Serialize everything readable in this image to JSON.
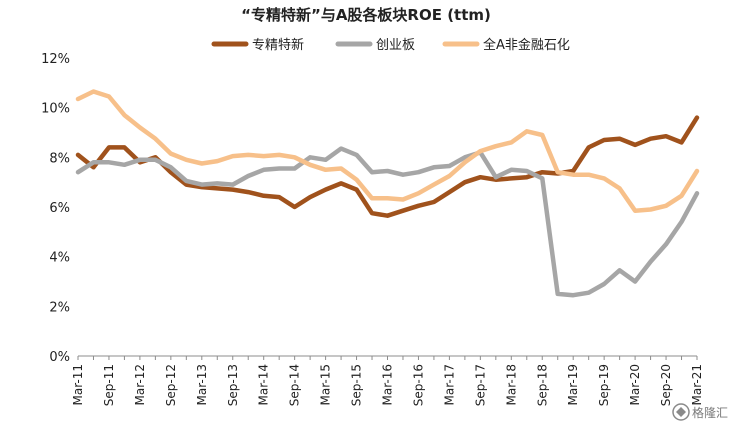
{
  "chart_data": {
    "type": "line",
    "title": "“专精特新”与A股各板块ROE (ttm)",
    "xlabel": "",
    "ylabel": "",
    "ylim": [
      0,
      12
    ],
    "yticks": [
      0,
      2,
      4,
      6,
      8,
      10,
      12
    ],
    "ytick_labels": [
      "0%",
      "2%",
      "4%",
      "6%",
      "8%",
      "10%",
      "12%"
    ],
    "grid": false,
    "legend_position": "top",
    "x": [
      "Mar-11",
      "Jun-11",
      "Sep-11",
      "Dec-11",
      "Mar-12",
      "Jun-12",
      "Sep-12",
      "Dec-12",
      "Mar-13",
      "Jun-13",
      "Sep-13",
      "Dec-13",
      "Mar-14",
      "Jun-14",
      "Sep-14",
      "Dec-14",
      "Mar-15",
      "Jun-15",
      "Sep-15",
      "Dec-15",
      "Mar-16",
      "Jun-16",
      "Sep-16",
      "Dec-16",
      "Mar-17",
      "Jun-17",
      "Sep-17",
      "Dec-17",
      "Mar-18",
      "Jun-18",
      "Sep-18",
      "Dec-18",
      "Mar-19",
      "Jun-19",
      "Sep-19",
      "Dec-19",
      "Mar-20",
      "Jun-20",
      "Sep-20",
      "Dec-20",
      "Mar-21"
    ],
    "x_tick_labels": [
      "Mar-11",
      "Sep-11",
      "Mar-12",
      "Sep-12",
      "Mar-13",
      "Sep-13",
      "Mar-14",
      "Sep-14",
      "Mar-15",
      "Sep-15",
      "Mar-16",
      "Sep-16",
      "Mar-17",
      "Sep-17",
      "Mar-18",
      "Sep-18",
      "Mar-19",
      "Sep-19",
      "Mar-20",
      "Sep-20",
      "Mar-21"
    ],
    "series": [
      {
        "name": "专精特新",
        "color": "#a0521c",
        "values": [
          8.1,
          7.6,
          8.4,
          8.4,
          7.8,
          8.0,
          7.4,
          6.9,
          6.8,
          6.75,
          6.7,
          6.6,
          6.45,
          6.4,
          6.0,
          6.4,
          6.7,
          6.95,
          6.7,
          5.75,
          5.65,
          5.85,
          6.05,
          6.2,
          6.6,
          7.0,
          7.2,
          7.1,
          7.15,
          7.2,
          7.4,
          7.35,
          7.45,
          8.4,
          8.7,
          8.75,
          8.5,
          8.75,
          8.85,
          8.6,
          9.6
        ]
      },
      {
        "name": "创业板",
        "color": "#a6a6a6",
        "values": [
          7.4,
          7.8,
          7.8,
          7.7,
          7.9,
          7.9,
          7.6,
          7.05,
          6.9,
          6.95,
          6.9,
          7.25,
          7.5,
          7.55,
          7.55,
          8.0,
          7.9,
          8.35,
          8.1,
          7.4,
          7.45,
          7.3,
          7.4,
          7.6,
          7.65,
          8.0,
          8.2,
          7.2,
          7.5,
          7.45,
          7.15,
          2.5,
          2.45,
          2.55,
          2.9,
          3.45,
          3.0,
          3.8,
          4.5,
          5.4,
          6.55
        ]
      },
      {
        "name": "全A非金融石化",
        "color": "#f7c08a",
        "values": [
          10.35,
          10.65,
          10.45,
          9.7,
          9.2,
          8.75,
          8.15,
          7.9,
          7.75,
          7.85,
          8.05,
          8.1,
          8.05,
          8.1,
          8.0,
          7.7,
          7.5,
          7.55,
          7.1,
          6.35,
          6.35,
          6.3,
          6.55,
          6.9,
          7.25,
          7.8,
          8.25,
          8.45,
          8.6,
          9.05,
          8.9,
          7.4,
          7.3,
          7.3,
          7.15,
          6.75,
          5.85,
          5.9,
          6.05,
          6.45,
          7.45
        ]
      }
    ]
  },
  "watermark": {
    "text": "格隆汇"
  }
}
